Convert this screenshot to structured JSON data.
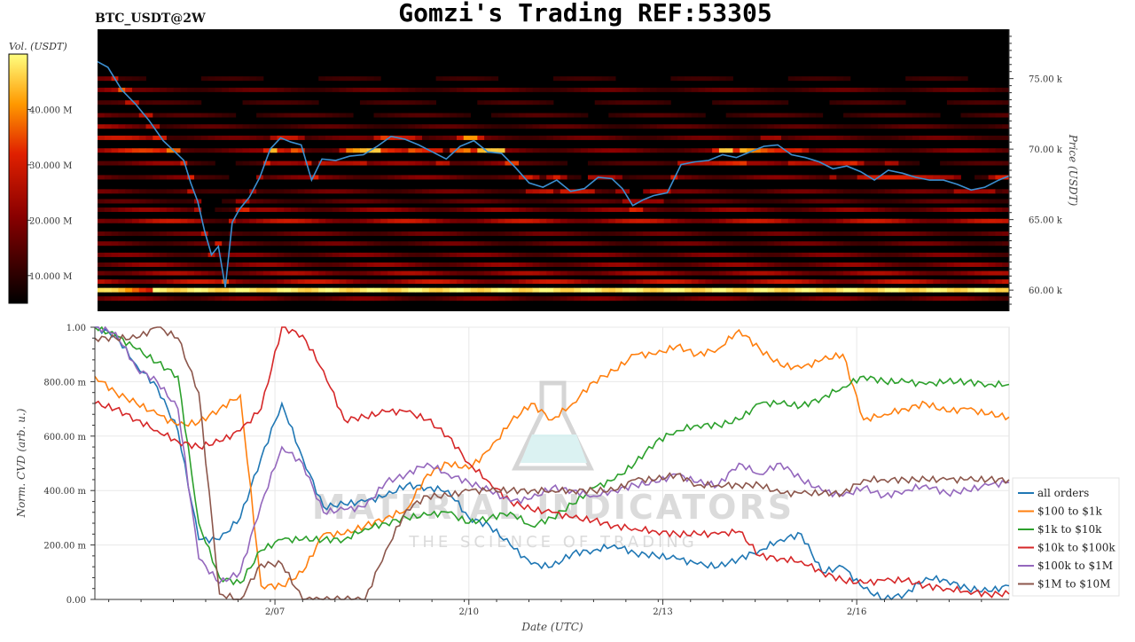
{
  "header": {
    "symbol": "BTC_USDT@2W",
    "title": "Gomzi's Trading REF:53305"
  },
  "colorbar": {
    "label": "Vol. (USDT)",
    "ticks": [
      "10.000 M",
      "20.000 M",
      "30.000 M",
      "40.000 M"
    ],
    "tick_values": [
      10,
      20,
      30,
      40
    ],
    "range": [
      5,
      50
    ]
  },
  "watermark": {
    "line1": "MATERIAL INDICATORS",
    "line2": "THE SCIENCE OF TRADING"
  },
  "chart_data": [
    {
      "type": "heatmap",
      "title": "",
      "ylabel": "Price (USDT)",
      "ylim": [
        58.5,
        78.5
      ],
      "y_ticks": [
        "60.00 k",
        "65.00 k",
        "70.00 k",
        "75.00 k"
      ],
      "y_tick_values": [
        60,
        65,
        70,
        75
      ],
      "x_range_days": [
        0,
        13.2
      ],
      "heat_bands": [
        {
          "price": 59.4,
          "intensity": 0.35
        },
        {
          "price": 60.0,
          "intensity": 0.95
        },
        {
          "price": 60.6,
          "intensity": 0.55
        },
        {
          "price": 61.2,
          "intensity": 0.45
        },
        {
          "price": 61.8,
          "intensity": 0.4
        },
        {
          "price": 62.5,
          "intensity": 0.35
        },
        {
          "price": 63.3,
          "intensity": 0.3
        },
        {
          "price": 64.0,
          "intensity": 0.3
        },
        {
          "price": 64.9,
          "intensity": 0.55
        },
        {
          "price": 65.7,
          "intensity": 0.4
        },
        {
          "price": 66.3,
          "intensity": 0.25
        },
        {
          "price": 67.0,
          "intensity": 0.3
        },
        {
          "price": 68.0,
          "intensity": 0.35
        },
        {
          "price": 69.0,
          "intensity": 0.4
        },
        {
          "price": 69.9,
          "intensity": 0.65
        },
        {
          "price": 70.8,
          "intensity": 0.55
        },
        {
          "price": 71.6,
          "intensity": 0.45
        },
        {
          "price": 72.4,
          "intensity": 0.4
        },
        {
          "price": 73.3,
          "intensity": 0.35
        },
        {
          "price": 74.2,
          "intensity": 0.5
        },
        {
          "price": 75.0,
          "intensity": 0.3
        }
      ],
      "price_series": {
        "name": "",
        "x": [
          0,
          0.15,
          0.35,
          0.55,
          0.75,
          0.95,
          1.1,
          1.25,
          1.35,
          1.45,
          1.55,
          1.65,
          1.75,
          1.85,
          1.95,
          2.05,
          2.2,
          2.35,
          2.5,
          2.65,
          2.8,
          2.95,
          3.1,
          3.25,
          3.45,
          3.65,
          3.85,
          4.05,
          4.25,
          4.45,
          4.65,
          4.85,
          5.05,
          5.25,
          5.45,
          5.65,
          5.85,
          6.05,
          6.25,
          6.45,
          6.65,
          6.85,
          7.05,
          7.25,
          7.45,
          7.6,
          7.75,
          7.9,
          8.05,
          8.25,
          8.45,
          8.65,
          8.85,
          9.05,
          9.25,
          9.45,
          9.65,
          9.85,
          10.05,
          10.25,
          10.45,
          10.65,
          10.85,
          11.05,
          11.25,
          11.45,
          11.65,
          11.85,
          12.05,
          12.25,
          12.45,
          12.65,
          12.85,
          13.05,
          13.2
        ],
        "y": [
          76.2,
          75.8,
          74.2,
          73.2,
          72.0,
          70.6,
          69.9,
          69.2,
          67.6,
          66.3,
          64.2,
          62.5,
          63.1,
          60.2,
          64.8,
          65.7,
          66.6,
          68.0,
          70.0,
          70.8,
          70.5,
          70.3,
          67.8,
          69.3,
          69.2,
          69.5,
          69.6,
          70.2,
          70.9,
          70.7,
          70.3,
          69.8,
          69.3,
          70.2,
          70.6,
          69.8,
          69.7,
          68.7,
          67.6,
          67.3,
          67.8,
          67.0,
          67.2,
          68.0,
          67.9,
          67.2,
          66.0,
          66.4,
          66.7,
          66.9,
          68.9,
          69.1,
          69.2,
          69.6,
          69.4,
          69.8,
          70.2,
          70.3,
          69.6,
          69.4,
          69.1,
          68.6,
          68.8,
          68.4,
          67.8,
          68.5,
          68.3,
          68.0,
          67.8,
          67.8,
          67.5,
          67.1,
          67.3,
          67.8,
          68.1
        ]
      }
    },
    {
      "type": "line",
      "title": "",
      "xlabel": "Date (UTC)",
      "ylabel": "Norm. CVD (arb. u.)",
      "ylim": [
        0,
        1
      ],
      "y_ticks": [
        "0.00",
        "200.00 m",
        "400.00 m",
        "600.00 m",
        "800.00 m",
        "1.00"
      ],
      "y_tick_values": [
        0,
        0.2,
        0.4,
        0.6,
        0.8,
        1.0
      ],
      "x_ticks": [
        "2/07",
        "2/10",
        "2/13",
        "2/16"
      ],
      "x_tick_values": [
        2.6,
        5.4,
        8.2,
        11.0
      ],
      "xlim": [
        0,
        13.2
      ],
      "legend_position": "right",
      "x": [
        0,
        0.3,
        0.6,
        0.9,
        1.2,
        1.5,
        1.8,
        2.1,
        2.4,
        2.7,
        3.0,
        3.3,
        3.6,
        3.9,
        4.2,
        4.5,
        4.8,
        5.1,
        5.4,
        5.7,
        6.0,
        6.3,
        6.6,
        6.9,
        7.2,
        7.5,
        7.8,
        8.1,
        8.4,
        8.7,
        9.0,
        9.3,
        9.6,
        9.9,
        10.2,
        10.5,
        10.8,
        11.1,
        11.4,
        11.7,
        12.0,
        12.3,
        12.6,
        12.9,
        13.2
      ],
      "series": [
        {
          "name": "all orders",
          "color": "#1f77b4",
          "values": [
            1.0,
            0.97,
            0.86,
            0.78,
            0.62,
            0.22,
            0.22,
            0.3,
            0.52,
            0.72,
            0.52,
            0.34,
            0.35,
            0.36,
            0.38,
            0.42,
            0.41,
            0.4,
            0.3,
            0.27,
            0.2,
            0.13,
            0.12,
            0.17,
            0.18,
            0.2,
            0.17,
            0.16,
            0.15,
            0.13,
            0.12,
            0.15,
            0.18,
            0.22,
            0.24,
            0.1,
            0.12,
            0.04,
            0.0,
            0.02,
            0.08,
            0.07,
            0.04,
            0.03,
            0.05
          ]
        },
        {
          "name": "$100 to $1k",
          "color": "#ff7f0e",
          "values": [
            0.82,
            0.76,
            0.72,
            0.68,
            0.64,
            0.65,
            0.7,
            0.75,
            0.05,
            0.05,
            0.1,
            0.24,
            0.24,
            0.27,
            0.3,
            0.33,
            0.46,
            0.5,
            0.48,
            0.55,
            0.65,
            0.72,
            0.66,
            0.72,
            0.8,
            0.84,
            0.9,
            0.9,
            0.93,
            0.9,
            0.92,
            0.99,
            0.92,
            0.86,
            0.85,
            0.88,
            0.9,
            0.66,
            0.68,
            0.7,
            0.72,
            0.69,
            0.7,
            0.68,
            0.67
          ]
        },
        {
          "name": "$1k to $10k",
          "color": "#2ca02c",
          "values": [
            1.0,
            0.97,
            0.92,
            0.87,
            0.82,
            0.28,
            0.08,
            0.06,
            0.18,
            0.22,
            0.22,
            0.22,
            0.22,
            0.26,
            0.28,
            0.3,
            0.31,
            0.32,
            0.28,
            0.3,
            0.32,
            0.27,
            0.3,
            0.35,
            0.41,
            0.44,
            0.5,
            0.58,
            0.62,
            0.64,
            0.64,
            0.66,
            0.72,
            0.72,
            0.71,
            0.74,
            0.78,
            0.82,
            0.8,
            0.8,
            0.79,
            0.8,
            0.8,
            0.79,
            0.79
          ]
        },
        {
          "name": "$10k to $100k",
          "color": "#d62728",
          "values": [
            0.72,
            0.7,
            0.66,
            0.62,
            0.58,
            0.56,
            0.58,
            0.62,
            0.7,
            1.0,
            0.97,
            0.84,
            0.66,
            0.67,
            0.69,
            0.69,
            0.66,
            0.6,
            0.5,
            0.43,
            0.36,
            0.33,
            0.32,
            0.3,
            0.29,
            0.27,
            0.26,
            0.25,
            0.24,
            0.24,
            0.24,
            0.25,
            0.16,
            0.15,
            0.14,
            0.1,
            0.07,
            0.06,
            0.07,
            0.07,
            0.05,
            0.04,
            0.03,
            0.02,
            0.02
          ]
        },
        {
          "name": "$100k to $1M",
          "color": "#9467bd",
          "values": [
            1.0,
            0.98,
            0.85,
            0.8,
            0.7,
            0.15,
            0.06,
            0.1,
            0.35,
            0.56,
            0.5,
            0.32,
            0.33,
            0.34,
            0.43,
            0.46,
            0.5,
            0.46,
            0.43,
            0.4,
            0.36,
            0.37,
            0.41,
            0.4,
            0.38,
            0.4,
            0.42,
            0.43,
            0.46,
            0.43,
            0.42,
            0.5,
            0.46,
            0.5,
            0.44,
            0.4,
            0.38,
            0.41,
            0.38,
            0.4,
            0.42,
            0.39,
            0.4,
            0.42,
            0.43
          ]
        },
        {
          "name": "$1M to $10M",
          "color": "#8c564b",
          "values": [
            0.96,
            0.96,
            0.96,
            1.0,
            0.96,
            0.76,
            0.02,
            0.0,
            0.13,
            0.13,
            0.0,
            0.0,
            0.0,
            0.0,
            0.18,
            0.33,
            0.38,
            0.38,
            0.4,
            0.4,
            0.4,
            0.4,
            0.4,
            0.4,
            0.4,
            0.4,
            0.44,
            0.44,
            0.46,
            0.42,
            0.42,
            0.42,
            0.42,
            0.39,
            0.39,
            0.39,
            0.39,
            0.44,
            0.44,
            0.44,
            0.44,
            0.44,
            0.44,
            0.44,
            0.44
          ]
        }
      ]
    }
  ]
}
